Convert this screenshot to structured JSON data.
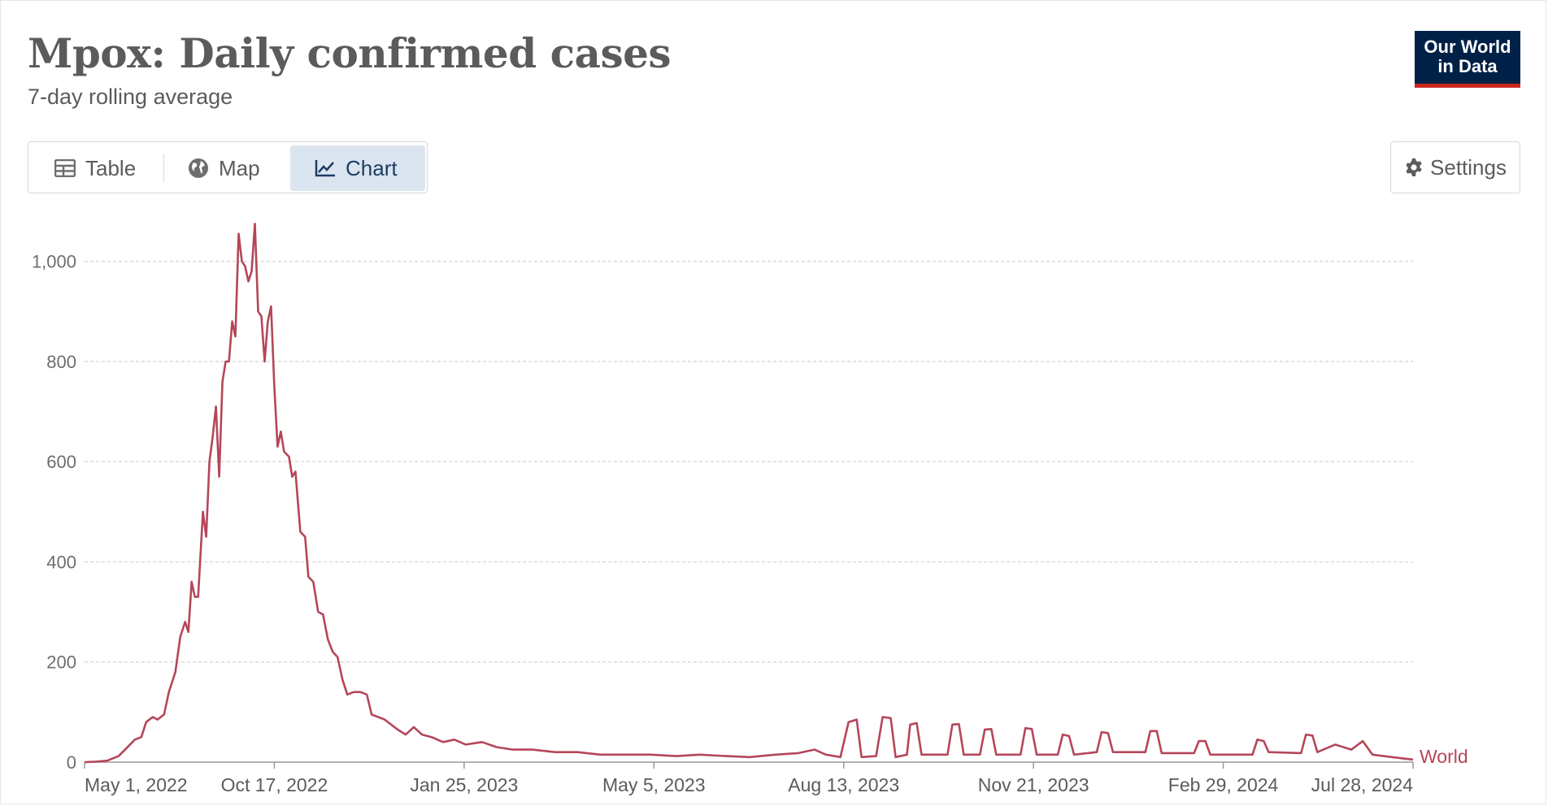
{
  "header": {
    "title": "Mpox: Daily confirmed cases",
    "subtitle": "7-day rolling average",
    "logo_line1": "Our World",
    "logo_line2": "in Data"
  },
  "tabs": [
    {
      "label": "Table",
      "icon": "table-icon",
      "active": false
    },
    {
      "label": "Map",
      "icon": "globe-icon",
      "active": false
    },
    {
      "label": "Chart",
      "icon": "line-chart-icon",
      "active": true
    }
  ],
  "settings": {
    "label": "Settings",
    "icon": "gear-icon"
  },
  "colors": {
    "series": "#b5465a",
    "logo_bg": "#002147",
    "logo_bar": "#ce261e",
    "active_tab_bg": "#dbe5f0"
  },
  "chart_data": {
    "type": "line",
    "title": "Mpox: Daily confirmed cases",
    "subtitle": "7-day rolling average",
    "ylim": [
      0,
      1100
    ],
    "y_ticks": [
      0,
      200,
      400,
      600,
      800,
      1000
    ],
    "y_tick_labels": [
      "0",
      "200",
      "400",
      "600",
      "800",
      "1,000"
    ],
    "x_tick_labels": [
      "May 1, 2022",
      "Oct 17, 2022",
      "Jan 25, 2023",
      "May 5, 2023",
      "Aug 13, 2023",
      "Nov 21, 2023",
      "Feb 29, 2024",
      "Jul 28, 2024"
    ],
    "x_range": [
      "2022-05-01",
      "2024-07-28"
    ],
    "grid": "horizontal-dashed",
    "series": [
      {
        "name": "World",
        "points": [
          [
            "2022-05-01",
            0
          ],
          [
            "2022-05-08",
            1
          ],
          [
            "2022-05-15",
            3
          ],
          [
            "2022-05-22",
            12
          ],
          [
            "2022-05-29",
            35
          ],
          [
            "2022-06-01",
            45
          ],
          [
            "2022-06-05",
            50
          ],
          [
            "2022-06-08",
            80
          ],
          [
            "2022-06-12",
            90
          ],
          [
            "2022-06-15",
            85
          ],
          [
            "2022-06-19",
            95
          ],
          [
            "2022-06-22",
            140
          ],
          [
            "2022-06-26",
            180
          ],
          [
            "2022-06-29",
            250
          ],
          [
            "2022-07-02",
            280
          ],
          [
            "2022-07-04",
            260
          ],
          [
            "2022-07-06",
            360
          ],
          [
            "2022-07-08",
            330
          ],
          [
            "2022-07-10",
            330
          ],
          [
            "2022-07-13",
            500
          ],
          [
            "2022-07-15",
            450
          ],
          [
            "2022-07-17",
            600
          ],
          [
            "2022-07-19",
            650
          ],
          [
            "2022-07-21",
            710
          ],
          [
            "2022-07-23",
            570
          ],
          [
            "2022-07-25",
            760
          ],
          [
            "2022-07-27",
            800
          ],
          [
            "2022-07-29",
            800
          ],
          [
            "2022-07-31",
            880
          ],
          [
            "2022-08-02",
            850
          ],
          [
            "2022-08-04",
            1055
          ],
          [
            "2022-08-06",
            1000
          ],
          [
            "2022-08-08",
            990
          ],
          [
            "2022-08-10",
            960
          ],
          [
            "2022-08-12",
            980
          ],
          [
            "2022-08-14",
            1075
          ],
          [
            "2022-08-16",
            900
          ],
          [
            "2022-08-18",
            890
          ],
          [
            "2022-08-20",
            800
          ],
          [
            "2022-08-22",
            880
          ],
          [
            "2022-08-24",
            910
          ],
          [
            "2022-08-26",
            750
          ],
          [
            "2022-08-28",
            630
          ],
          [
            "2022-08-30",
            660
          ],
          [
            "2022-09-01",
            620
          ],
          [
            "2022-09-04",
            610
          ],
          [
            "2022-09-06",
            570
          ],
          [
            "2022-09-08",
            580
          ],
          [
            "2022-09-11",
            460
          ],
          [
            "2022-09-14",
            450
          ],
          [
            "2022-09-16",
            370
          ],
          [
            "2022-09-19",
            360
          ],
          [
            "2022-09-22",
            300
          ],
          [
            "2022-09-25",
            295
          ],
          [
            "2022-09-28",
            245
          ],
          [
            "2022-10-01",
            220
          ],
          [
            "2022-10-04",
            210
          ],
          [
            "2022-10-07",
            165
          ],
          [
            "2022-10-10",
            135
          ],
          [
            "2022-10-14",
            140
          ],
          [
            "2022-10-18",
            140
          ],
          [
            "2022-10-22",
            135
          ],
          [
            "2022-10-25",
            95
          ],
          [
            "2022-10-29",
            90
          ],
          [
            "2022-11-02",
            85
          ],
          [
            "2022-11-06",
            75
          ],
          [
            "2022-11-10",
            65
          ],
          [
            "2022-11-15",
            55
          ],
          [
            "2022-11-20",
            70
          ],
          [
            "2022-11-25",
            55
          ],
          [
            "2022-12-01",
            50
          ],
          [
            "2022-12-08",
            40
          ],
          [
            "2022-12-15",
            45
          ],
          [
            "2022-12-22",
            35
          ],
          [
            "2023-01-01",
            40
          ],
          [
            "2023-01-10",
            30
          ],
          [
            "2023-01-20",
            25
          ],
          [
            "2023-02-01",
            25
          ],
          [
            "2023-02-15",
            20
          ],
          [
            "2023-03-01",
            20
          ],
          [
            "2023-03-15",
            15
          ],
          [
            "2023-04-01",
            15
          ],
          [
            "2023-04-15",
            15
          ],
          [
            "2023-05-01",
            12
          ],
          [
            "2023-05-15",
            15
          ],
          [
            "2023-06-01",
            12
          ],
          [
            "2023-06-15",
            10
          ],
          [
            "2023-07-01",
            15
          ],
          [
            "2023-07-15",
            18
          ],
          [
            "2023-07-25",
            25
          ],
          [
            "2023-08-01",
            15
          ],
          [
            "2023-08-10",
            10
          ],
          [
            "2023-08-15",
            80
          ],
          [
            "2023-08-20",
            85
          ],
          [
            "2023-08-23",
            10
          ],
          [
            "2023-09-01",
            12
          ],
          [
            "2023-09-05",
            90
          ],
          [
            "2023-09-10",
            88
          ],
          [
            "2023-09-13",
            10
          ],
          [
            "2023-09-20",
            15
          ],
          [
            "2023-09-22",
            75
          ],
          [
            "2023-09-26",
            78
          ],
          [
            "2023-09-29",
            15
          ],
          [
            "2023-10-15",
            15
          ],
          [
            "2023-10-18",
            75
          ],
          [
            "2023-10-22",
            76
          ],
          [
            "2023-10-25",
            15
          ],
          [
            "2023-11-04",
            15
          ],
          [
            "2023-11-07",
            65
          ],
          [
            "2023-11-11",
            66
          ],
          [
            "2023-11-14",
            15
          ],
          [
            "2023-11-29",
            15
          ],
          [
            "2023-12-02",
            68
          ],
          [
            "2023-12-06",
            66
          ],
          [
            "2023-12-09",
            15
          ],
          [
            "2023-12-22",
            15
          ],
          [
            "2023-12-25",
            55
          ],
          [
            "2023-12-29",
            52
          ],
          [
            "2024-01-01",
            15
          ],
          [
            "2024-01-15",
            20
          ],
          [
            "2024-01-18",
            60
          ],
          [
            "2024-01-22",
            58
          ],
          [
            "2024-01-25",
            20
          ],
          [
            "2024-02-14",
            20
          ],
          [
            "2024-02-17",
            62
          ],
          [
            "2024-02-21",
            62
          ],
          [
            "2024-02-24",
            18
          ],
          [
            "2024-03-15",
            18
          ],
          [
            "2024-03-18",
            42
          ],
          [
            "2024-03-22",
            42
          ],
          [
            "2024-03-25",
            15
          ],
          [
            "2024-04-20",
            15
          ],
          [
            "2024-04-23",
            45
          ],
          [
            "2024-04-27",
            42
          ],
          [
            "2024-04-30",
            20
          ],
          [
            "2024-05-20",
            18
          ],
          [
            "2024-05-23",
            55
          ],
          [
            "2024-05-27",
            53
          ],
          [
            "2024-05-30",
            20
          ],
          [
            "2024-06-10",
            35
          ],
          [
            "2024-06-20",
            25
          ],
          [
            "2024-06-27",
            42
          ],
          [
            "2024-07-03",
            15
          ],
          [
            "2024-07-15",
            10
          ],
          [
            "2024-07-28",
            5
          ]
        ]
      }
    ]
  }
}
